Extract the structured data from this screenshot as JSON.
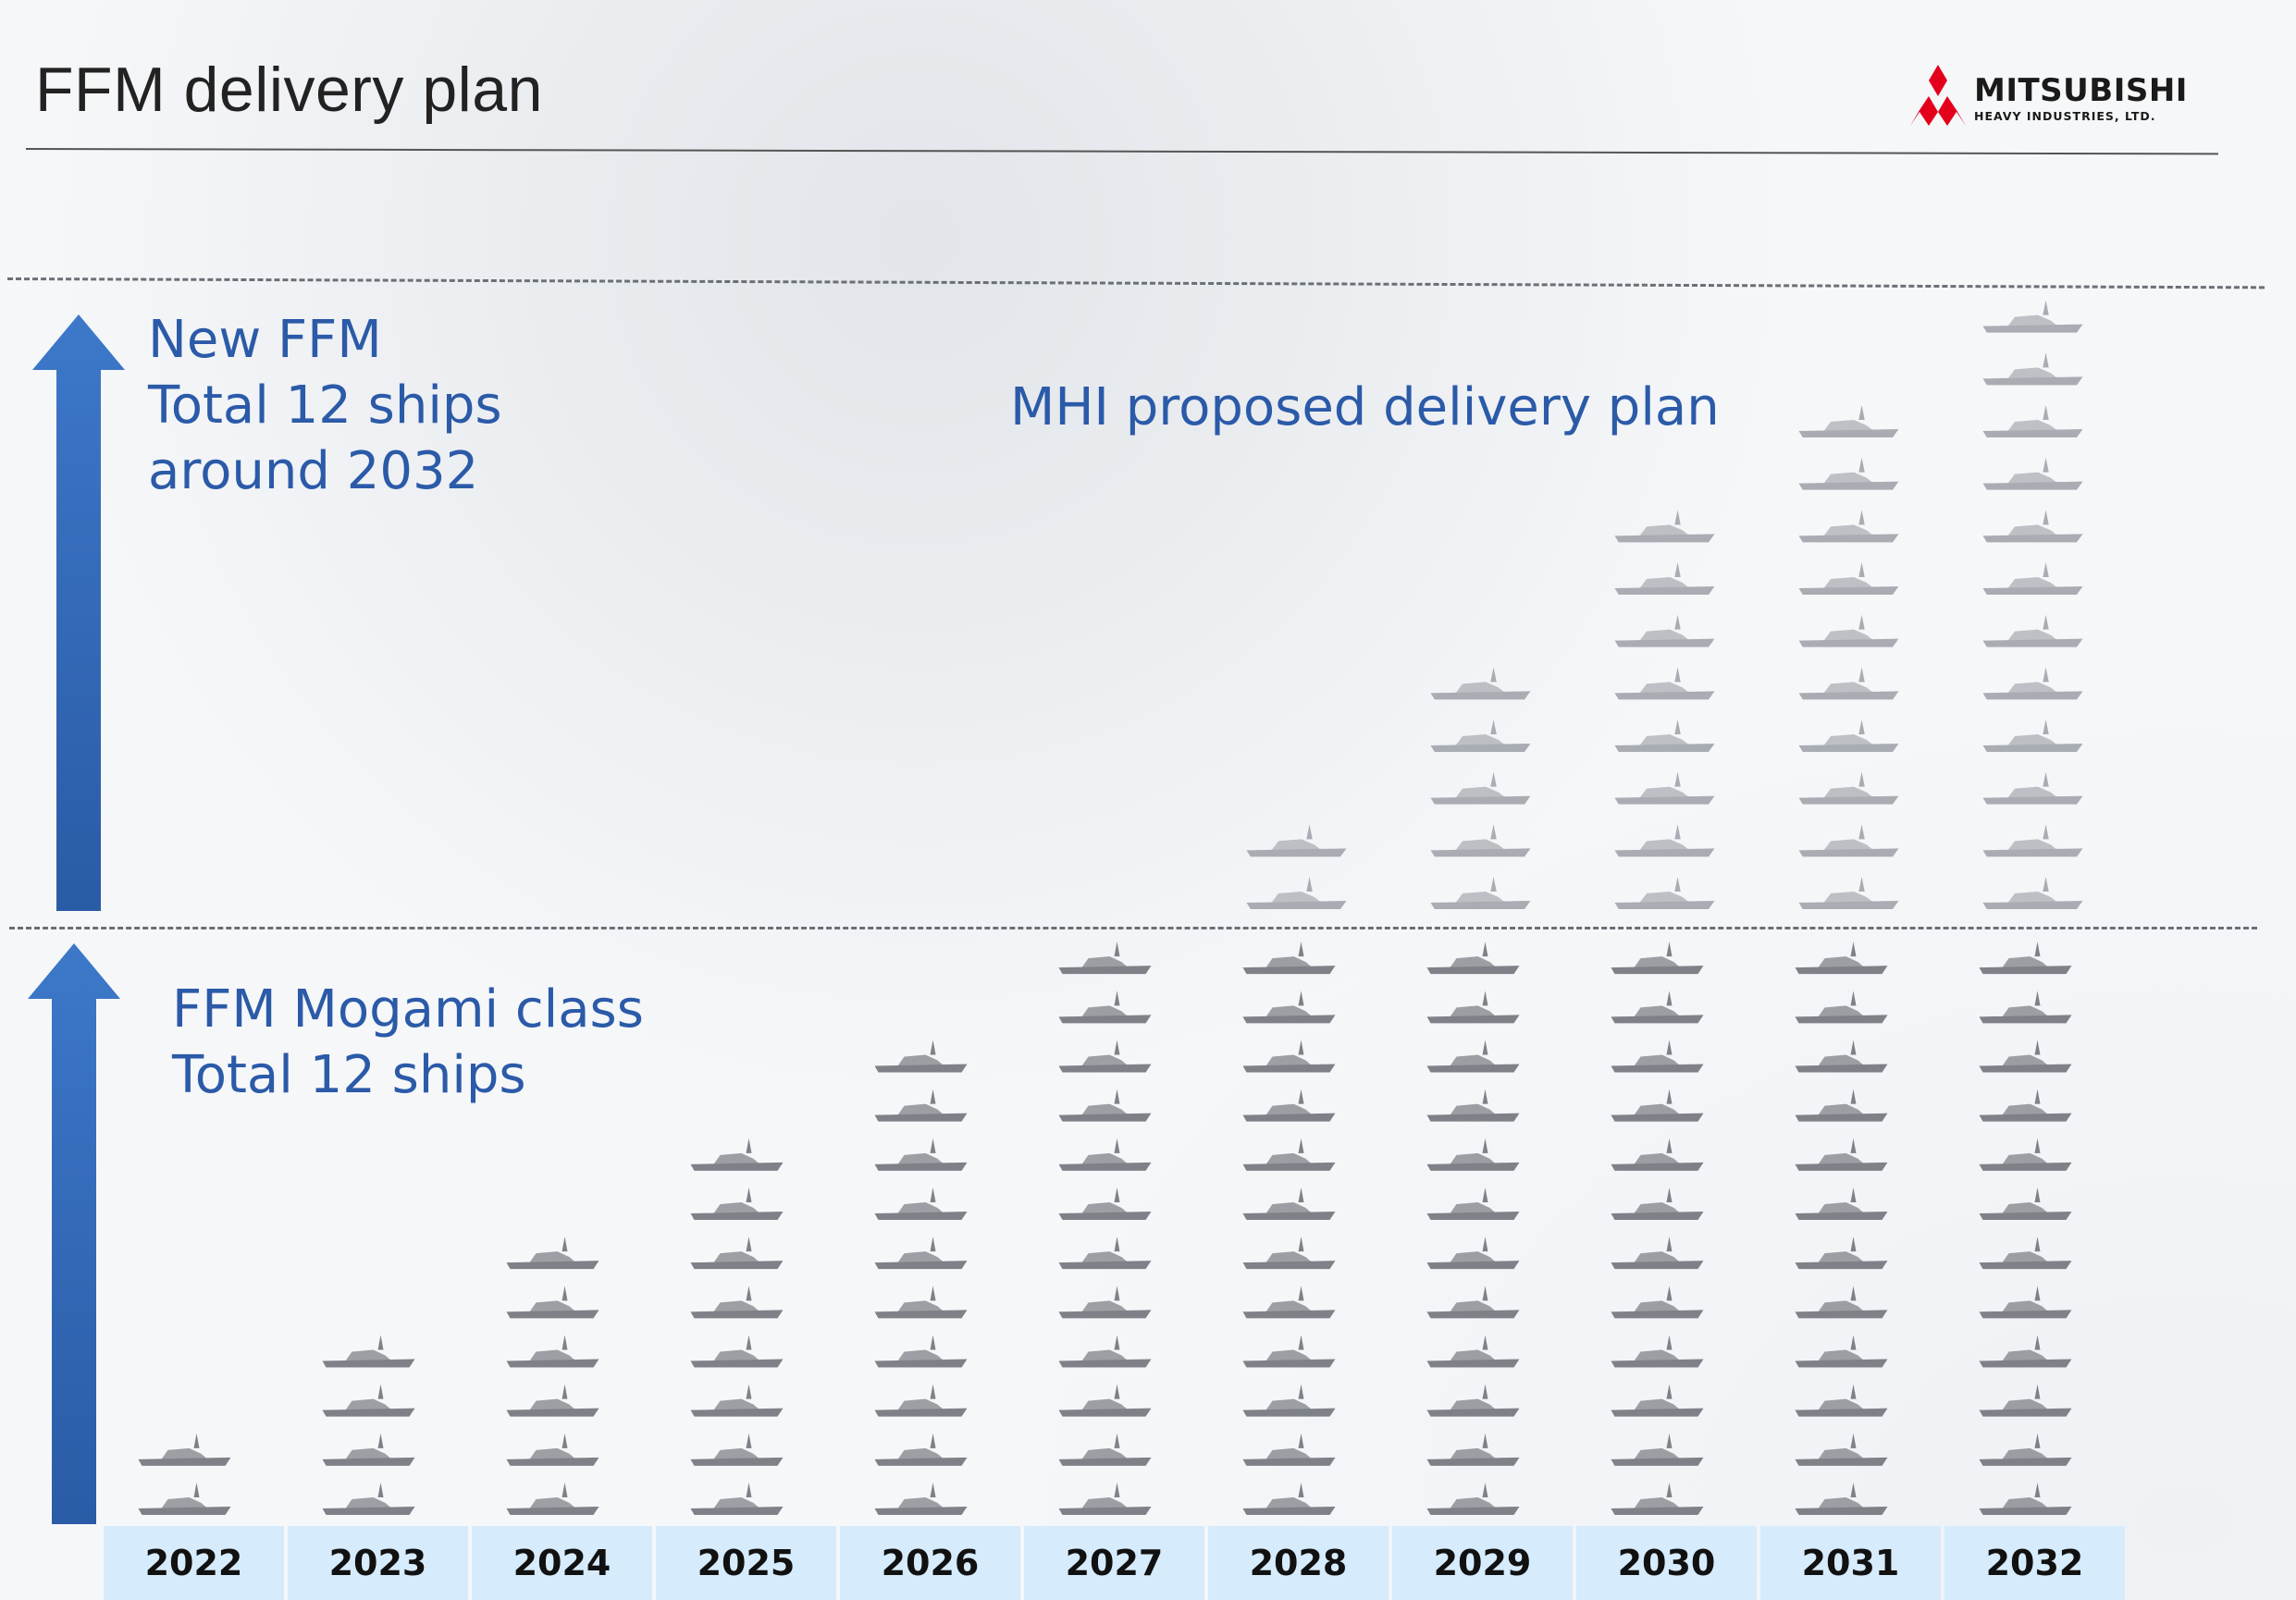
{
  "header": {
    "title": "FFM delivery plan",
    "logo": {
      "name": "MITSUBISHI",
      "subtitle": "HEAVY INDUSTRIES, LTD.",
      "mark_color": "#e4001b"
    }
  },
  "annotations": {
    "new_ffm": [
      "New FFM",
      "Total 12 ships",
      "around 2032"
    ],
    "mhi_plan": "MHI proposed  delivery plan",
    "mogami": [
      "FFM Mogami  class",
      "Total 12 ships"
    ]
  },
  "colors": {
    "label_blue": "#2b5aa8",
    "arrow_blue": "#2f66b8",
    "mogami_ship": "#7e8187",
    "new_ffm_ship": "#a9adb3",
    "year_band": "#d6ebfb"
  },
  "chart_data": {
    "type": "bar",
    "title": "FFM delivery plan",
    "categories": [
      "2022",
      "2023",
      "2024",
      "2025",
      "2026",
      "2027",
      "2028",
      "2029",
      "2030",
      "2031",
      "2032"
    ],
    "series": [
      {
        "name": "FFM Mogami  class",
        "values": [
          2,
          4,
          6,
          8,
          10,
          12,
          12,
          12,
          12,
          12,
          12
        ]
      },
      {
        "name": "New FFM",
        "values": [
          0,
          0,
          0,
          0,
          0,
          0,
          2,
          5,
          8,
          10,
          12
        ]
      }
    ],
    "ylim": [
      0,
      24
    ],
    "grid": false,
    "reference_lines": [
      12,
      24
    ]
  }
}
